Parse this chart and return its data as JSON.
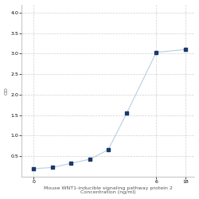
{
  "x": [
    0.0625,
    0.125,
    0.25,
    0.5,
    1,
    2,
    6,
    18
  ],
  "y": [
    0.19,
    0.22,
    0.32,
    0.42,
    0.65,
    1.55,
    3.03,
    3.1
  ],
  "xlabel_line1": "Mouse WNT1-inducible signaling pathway protein 2",
  "xlabel_line2": "Concentration (ng/ml)",
  "ylabel": "OD",
  "line_color": "#b8cfe0",
  "marker_color": "#1a3a6b",
  "marker_size": 3.5,
  "ylim": [
    0,
    4.2
  ],
  "yticks": [
    0.5,
    1,
    1.5,
    2,
    2.5,
    3,
    3.5,
    4
  ],
  "xtick_positions": [
    0.0625,
    6,
    18
  ],
  "xtick_labels": [
    "0",
    "6",
    "18"
  ],
  "grid_color": "#d0d0d0",
  "background_color": "#ffffff",
  "axis_fontsize": 4.5,
  "tick_fontsize": 4.5
}
